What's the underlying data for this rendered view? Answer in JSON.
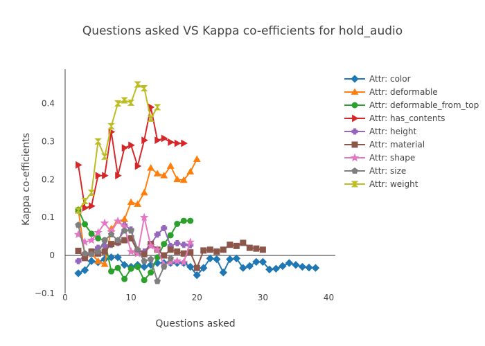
{
  "chart_data": {
    "type": "line",
    "title": "Questions asked VS Kappa co-efficients for hold_audio",
    "xlabel": "Questions asked",
    "ylabel": "Kappa co-efficients",
    "xlim": [
      0,
      41
    ],
    "ylim": [
      -0.1,
      0.49
    ],
    "xticks": [
      0,
      10,
      20,
      30,
      40
    ],
    "yticks": [
      -0.1,
      0,
      0.1,
      0.2,
      0.3,
      0.4
    ],
    "ytick_labels": [
      "−0.1",
      "0",
      "0.1",
      "0.2",
      "0.3",
      "0.4"
    ],
    "grid": false,
    "legend_position": "top-right",
    "series": [
      {
        "name": "Attr: color",
        "color": "#1f77b4",
        "marker": "diamond",
        "x": [
          2,
          3,
          4,
          5,
          6,
          7,
          8,
          9,
          10,
          11,
          12,
          13,
          14,
          15,
          16,
          17,
          18,
          19,
          20,
          21,
          22,
          23,
          24,
          25,
          26,
          27,
          28,
          29,
          30,
          31,
          32,
          33,
          34,
          35,
          36,
          37,
          38
        ],
        "y": [
          -0.047,
          -0.039,
          -0.015,
          -0.018,
          -0.01,
          -0.005,
          -0.005,
          -0.025,
          -0.03,
          -0.025,
          -0.03,
          -0.025,
          -0.02,
          -0.02,
          -0.02,
          -0.02,
          -0.02,
          -0.03,
          -0.052,
          -0.033,
          -0.008,
          -0.01,
          -0.045,
          -0.01,
          -0.008,
          -0.033,
          -0.028,
          -0.017,
          -0.017,
          -0.037,
          -0.035,
          -0.028,
          -0.02,
          -0.025,
          -0.03,
          -0.032,
          -0.033
        ]
      },
      {
        "name": "Attr: deformable",
        "color": "#ff7f0e",
        "marker": "triangle-up",
        "x": [
          2,
          3,
          4,
          5,
          6,
          7,
          8,
          9,
          10,
          11,
          12,
          13,
          14,
          15,
          16,
          17,
          18,
          19,
          20
        ],
        "y": [
          0.12,
          0.001,
          0.005,
          -0.015,
          -0.023,
          0.07,
          0.09,
          0.095,
          0.14,
          0.135,
          0.165,
          0.23,
          0.215,
          0.21,
          0.235,
          0.2,
          0.198,
          0.22,
          0.253
        ]
      },
      {
        "name": "Attr: deformable_from_top",
        "color": "#2ca02c",
        "marker": "circle",
        "x": [
          2,
          3,
          4,
          5,
          6,
          7,
          8,
          9,
          10,
          11,
          12,
          13,
          14,
          15,
          16,
          17,
          18,
          19
        ],
        "y": [
          0.12,
          0.082,
          0.057,
          0.045,
          0.04,
          -0.042,
          -0.033,
          -0.062,
          -0.035,
          -0.03,
          -0.065,
          -0.045,
          -0.005,
          0.03,
          0.053,
          0.083,
          0.091,
          0.091
        ]
      },
      {
        "name": "Attr: has_contents",
        "color": "#d62728",
        "marker": "triangle-right",
        "x": [
          2,
          3,
          4,
          5,
          6,
          7,
          8,
          9,
          10,
          11,
          12,
          13,
          14,
          15,
          16,
          17,
          18
        ],
        "y": [
          0.238,
          0.125,
          0.13,
          0.21,
          0.21,
          0.325,
          0.21,
          0.283,
          0.29,
          0.235,
          0.303,
          0.39,
          0.303,
          0.308,
          0.298,
          0.295,
          0.295
        ]
      },
      {
        "name": "Attr: height",
        "color": "#9467bd",
        "marker": "cross",
        "x": [
          2,
          3,
          4,
          5,
          6,
          7,
          8,
          9,
          10,
          11,
          12,
          13,
          14,
          15,
          16,
          17,
          18,
          19
        ],
        "y": [
          -0.015,
          0.0,
          0.01,
          0.02,
          0.025,
          0.028,
          0.033,
          0.08,
          0.068,
          0.008,
          0.01,
          0.03,
          0.055,
          0.072,
          0.025,
          0.032,
          0.028,
          0.027
        ]
      },
      {
        "name": "Attr: material",
        "color": "#8c564b",
        "marker": "square",
        "x": [
          2,
          3,
          4,
          5,
          6,
          7,
          8,
          9,
          10,
          11,
          12,
          13,
          14,
          15,
          16,
          17,
          18,
          19,
          20,
          21,
          22,
          23,
          24,
          25,
          26,
          27,
          28,
          29,
          30
        ],
        "y": [
          0.012,
          -0.007,
          0.01,
          0.005,
          0.01,
          0.03,
          0.035,
          0.04,
          0.045,
          0.01,
          0.003,
          0.03,
          0.015,
          0.0,
          0.015,
          0.01,
          0.005,
          0.008,
          -0.033,
          0.013,
          0.015,
          0.01,
          0.015,
          0.028,
          0.025,
          0.033,
          0.02,
          0.018,
          0.015
        ]
      },
      {
        "name": "Attr: shape",
        "color": "#e377c2",
        "marker": "star",
        "x": [
          2,
          3,
          4,
          5,
          6,
          7,
          8,
          9,
          10,
          11,
          12,
          13,
          14,
          15,
          16,
          17,
          18,
          19
        ],
        "y": [
          0.055,
          0.035,
          0.04,
          0.06,
          0.085,
          0.062,
          0.09,
          0.075,
          0.01,
          0.005,
          0.1,
          0.025,
          0.015,
          -0.025,
          -0.018,
          -0.015,
          -0.018,
          0.035
        ]
      },
      {
        "name": "Attr: size",
        "color": "#7f7f7f",
        "marker": "pentagon",
        "x": [
          2,
          3,
          4,
          5,
          6,
          7,
          8,
          9,
          10,
          11,
          12,
          13,
          14,
          15,
          16
        ],
        "y": [
          0.08,
          0.005,
          0.003,
          0.01,
          0.04,
          0.055,
          0.04,
          0.065,
          0.065,
          0.015,
          -0.015,
          -0.01,
          -0.068,
          -0.03,
          -0.008
        ]
      },
      {
        "name": "Attr: weight",
        "color": "#bcbd22",
        "marker": "hourglass",
        "x": [
          2,
          3,
          4,
          5,
          6,
          7,
          8,
          9,
          10,
          11,
          12,
          13,
          14
        ],
        "y": [
          0.118,
          0.143,
          0.165,
          0.3,
          0.26,
          0.34,
          0.4,
          0.408,
          0.402,
          0.45,
          0.44,
          0.36,
          0.39
        ]
      }
    ]
  }
}
